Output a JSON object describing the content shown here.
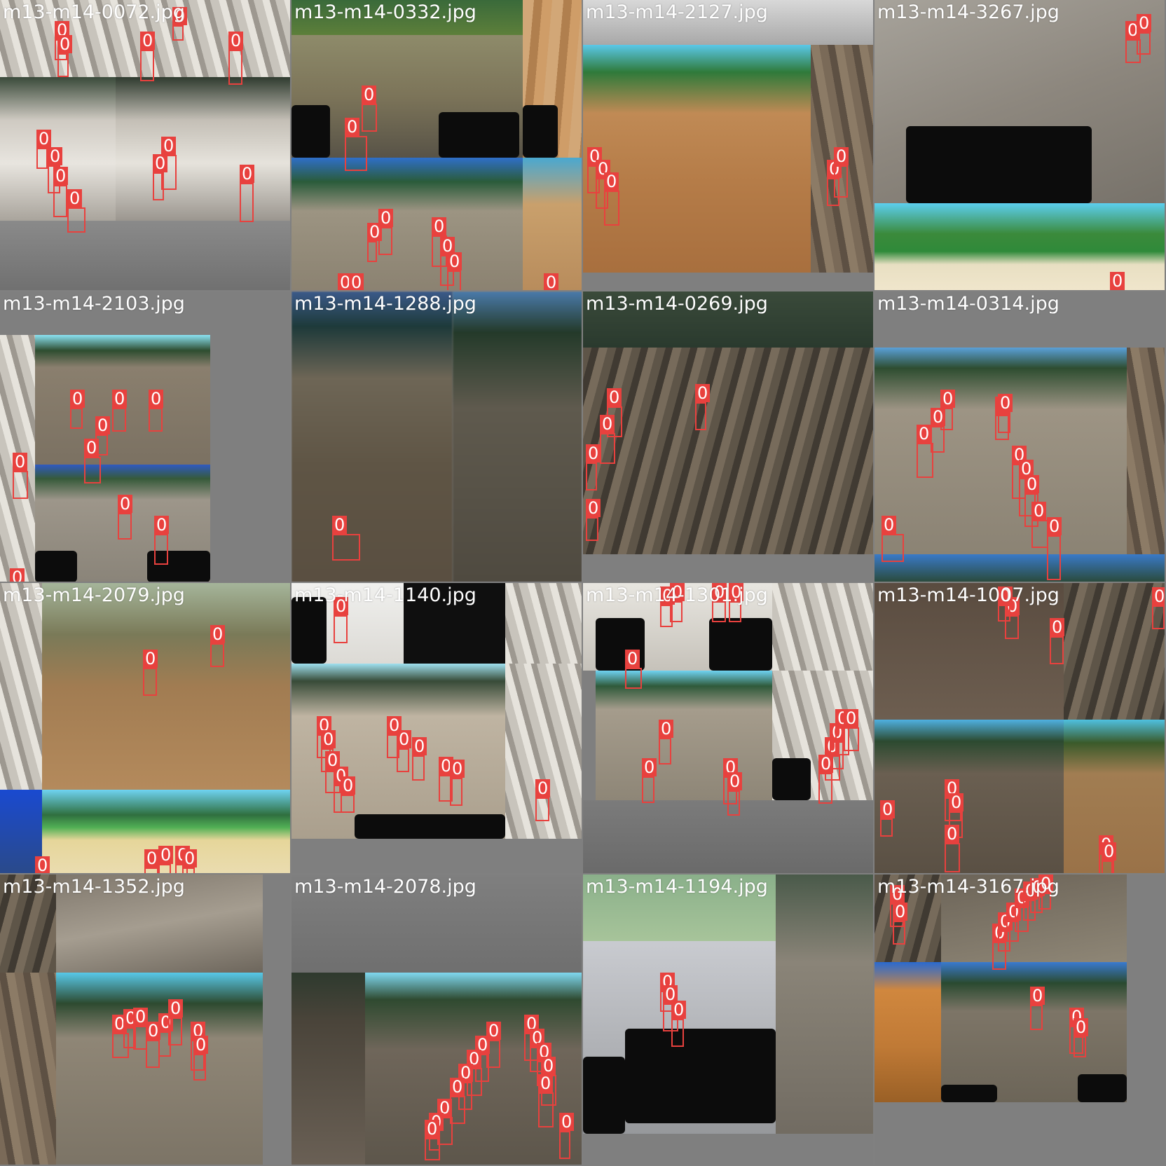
{
  "mosaic": {
    "label_color": "#e8413e",
    "class_label": "0",
    "tiles": [
      {
        "title": "m13-m14-0072.jpg"
      },
      {
        "title": "m13-m14-0332.jpg"
      },
      {
        "title": "m13-m14-2127.jpg"
      },
      {
        "title": "m13-m14-3267.jpg"
      },
      {
        "title": "m13-m14-2103.jpg"
      },
      {
        "title": "m13-m14-1288.jpg"
      },
      {
        "title": "m13-m14-0269.jpg"
      },
      {
        "title": "m13-m14-0314.jpg"
      },
      {
        "title": "m13-m14-2079.jpg"
      },
      {
        "title": "m13-m14-1140.jpg"
      },
      {
        "title": "m13-m14-1301.jpg"
      },
      {
        "title": "m13-m14-1007.jpg"
      },
      {
        "title": "m13-m14-1352.jpg"
      },
      {
        "title": "m13-m14-2078.jpg"
      },
      {
        "title": "m13-m14-1194.jpg"
      },
      {
        "title": "m13-m14-3167.jpg"
      }
    ]
  }
}
